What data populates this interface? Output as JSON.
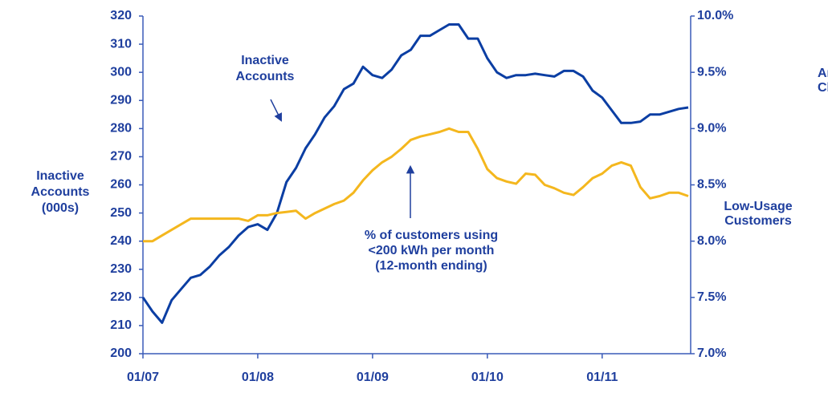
{
  "chart_data": {
    "type": "line",
    "y_label": [
      "Inactive",
      "Accounts",
      "(000s)"
    ],
    "y2_label": [
      "Low-Usage",
      "Customers"
    ],
    "y2_label_clipped": [
      "An",
      "Ch"
    ],
    "annotations": [
      {
        "lines": [
          "Inactive",
          "Accounts"
        ]
      },
      {
        "lines": [
          "% of customers using",
          "<200 kWh per month",
          "(12-month ending)"
        ]
      }
    ],
    "categories": [
      "01/07",
      null,
      null,
      null,
      null,
      null,
      null,
      null,
      null,
      null,
      null,
      null,
      "01/08",
      null,
      null,
      null,
      null,
      null,
      null,
      null,
      null,
      null,
      null,
      null,
      "01/09",
      null,
      null,
      null,
      null,
      null,
      null,
      null,
      null,
      null,
      null,
      null,
      "01/10",
      null,
      null,
      null,
      null,
      null,
      null,
      null,
      null,
      null,
      null,
      null,
      "01/11",
      null,
      null,
      null,
      null,
      null,
      null,
      null,
      null,
      null
    ],
    "series": [
      {
        "color": "#0b3ea3",
        "axis": "y",
        "values": [
          220,
          215,
          211,
          219,
          223,
          227,
          228,
          231,
          235,
          238,
          242,
          245,
          246,
          244,
          250,
          261,
          266,
          273,
          278,
          284,
          288,
          294,
          296,
          302,
          299,
          298,
          301,
          306,
          308,
          313,
          313,
          315,
          317,
          317,
          312,
          312,
          305,
          300,
          298,
          299,
          299,
          299.5,
          299,
          298.5,
          300.5,
          300.5,
          298.5,
          293.5,
          291,
          286.5,
          282,
          282,
          282.5,
          285,
          285,
          286,
          287,
          287.5
        ]
      },
      {
        "color": "#f4b71e",
        "axis": "y2",
        "values": [
          8.0,
          8.0,
          8.05,
          8.1,
          8.15,
          8.2,
          8.2,
          8.2,
          8.2,
          8.2,
          8.2,
          8.18,
          8.23,
          8.23,
          8.25,
          8.26,
          8.27,
          8.2,
          8.25,
          8.29,
          8.33,
          8.36,
          8.43,
          8.54,
          8.63,
          8.7,
          8.75,
          8.82,
          8.9,
          8.93,
          8.95,
          8.97,
          9.0,
          8.97,
          8.97,
          8.82,
          8.64,
          8.56,
          8.53,
          8.51,
          8.6,
          8.59,
          8.5,
          8.47,
          8.43,
          8.41,
          8.48,
          8.56,
          8.6,
          8.67,
          8.7,
          8.67,
          8.48,
          8.38,
          8.4,
          8.43,
          8.43,
          8.4
        ]
      }
    ],
    "ylim": [
      200,
      320
    ],
    "yticks": [
      200,
      210,
      220,
      230,
      240,
      250,
      260,
      270,
      280,
      290,
      300,
      310,
      320
    ],
    "y2lim": [
      7.0,
      10.0
    ],
    "y2ticks": [
      {
        "value": 7.0,
        "label": "7.0%"
      },
      {
        "value": 7.5,
        "label": "7.5%"
      },
      {
        "value": 8.0,
        "label": "8.0%"
      },
      {
        "value": 8.5,
        "label": "8.5%"
      },
      {
        "value": 9.0,
        "label": "9.0%"
      },
      {
        "value": 9.5,
        "label": "9.5%"
      },
      {
        "value": 10.0,
        "label": "10.0%"
      }
    ],
    "grid": false
  }
}
